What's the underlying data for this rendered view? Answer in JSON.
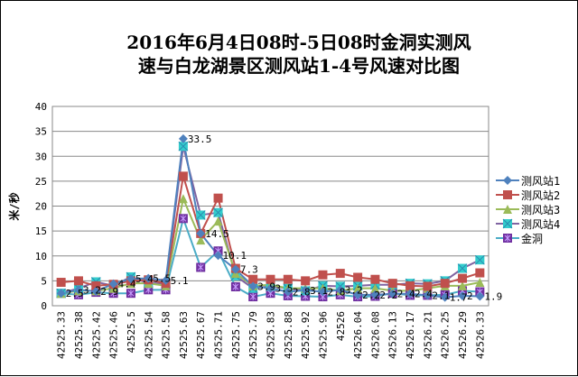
{
  "chart_data": {
    "type": "line",
    "title_lines": [
      "2016年6月4日08时-5日08时金洞实测风",
      "速与白龙湖景区测风站1-4号风速对比图"
    ],
    "xlabel": "",
    "ylabel": "米/秒",
    "ylim": [
      0,
      40
    ],
    "yticks": [
      0,
      5,
      10,
      15,
      20,
      25,
      30,
      35,
      40
    ],
    "grid": true,
    "legend_position": "right",
    "categories": [
      "42525.33",
      "42525.38",
      "42525.42",
      "42525.46",
      "42525.5",
      "42525.54",
      "42525.58",
      "42525.63",
      "42525.67",
      "42525.71",
      "42525.75",
      "42525.79",
      "42525.83",
      "42525.88",
      "42525.92",
      "42525.96",
      "42526",
      "42526.04",
      "42526.08",
      "42526.13",
      "42526.17",
      "42526.21",
      "42526.25",
      "42526.29",
      "42526.33"
    ],
    "series": [
      {
        "name": "测风站1",
        "line_color": "#4F81BD",
        "marker_color": "#4F81BD",
        "marker": "diamond",
        "values": [
          2.5,
          3.2,
          2.9,
          4.4,
          5.4,
          5.5,
          5.1,
          33.5,
          14.5,
          10.1,
          7.3,
          3.9,
          3.5,
          2.8,
          3.1,
          2.8,
          3.2,
          2.2,
          2.2,
          2.4,
          2.4,
          2.1,
          1.7,
          2,
          1.9
        ],
        "labels": [
          "2.5",
          "3.2",
          "2.9",
          "4.4",
          "5.4",
          "5.5",
          "5.1",
          "33.5",
          "14.5",
          "10.1",
          "7.3",
          "3.9",
          "3.5",
          "2.8",
          "3.1",
          "2.8",
          "3.2",
          "2.2",
          "2.2",
          "2.4",
          "2.4",
          "2.1",
          "1.7",
          "2",
          "1.9"
        ]
      },
      {
        "name": "测风站2",
        "line_color": "#C0504D",
        "marker_color": "#C0504D",
        "marker": "square",
        "values": [
          4.7,
          5,
          4,
          4.3,
          5,
          5.2,
          4.5,
          26,
          14.5,
          21.6,
          7.5,
          5.3,
          5.3,
          5.3,
          5,
          6.2,
          6.5,
          5.7,
          5.3,
          4.5,
          4,
          3.9,
          4.5,
          5.5,
          6.6
        ]
      },
      {
        "name": "测风站3",
        "line_color": "#9BBB59",
        "marker_color": "#9BBB59",
        "marker": "triangle",
        "values": [
          2.5,
          3,
          3,
          3.5,
          4.5,
          4.5,
          4,
          21.5,
          13.2,
          17,
          6.5,
          4,
          4.2,
          3.5,
          3.5,
          3.5,
          3,
          3.5,
          3.5,
          3,
          3,
          3.5,
          4,
          4,
          4.7
        ]
      },
      {
        "name": "测风站4",
        "line_color": "#8064A2",
        "marker_color": "#33CCCC",
        "marker": "xsquare",
        "values": [
          2.5,
          3.5,
          4.8,
          4,
          5.8,
          4.5,
          4.5,
          32,
          18.2,
          18.7,
          6,
          3.5,
          3.9,
          3.5,
          3,
          4,
          3.9,
          4,
          4.2,
          4.2,
          4.5,
          4.4,
          5,
          7.5,
          9.2
        ]
      },
      {
        "name": "金洞",
        "line_color": "#4BACC6",
        "marker_color": "#7030A0",
        "marker": "star",
        "values": [
          2.5,
          2.2,
          2.7,
          2.5,
          2.5,
          3.2,
          3.2,
          17.5,
          7.7,
          11,
          3.8,
          1.8,
          2.5,
          2,
          1.9,
          1.8,
          2.2,
          1.8,
          1.9,
          2.5,
          2.1,
          2.1,
          2.2,
          3,
          2.8
        ]
      }
    ]
  }
}
